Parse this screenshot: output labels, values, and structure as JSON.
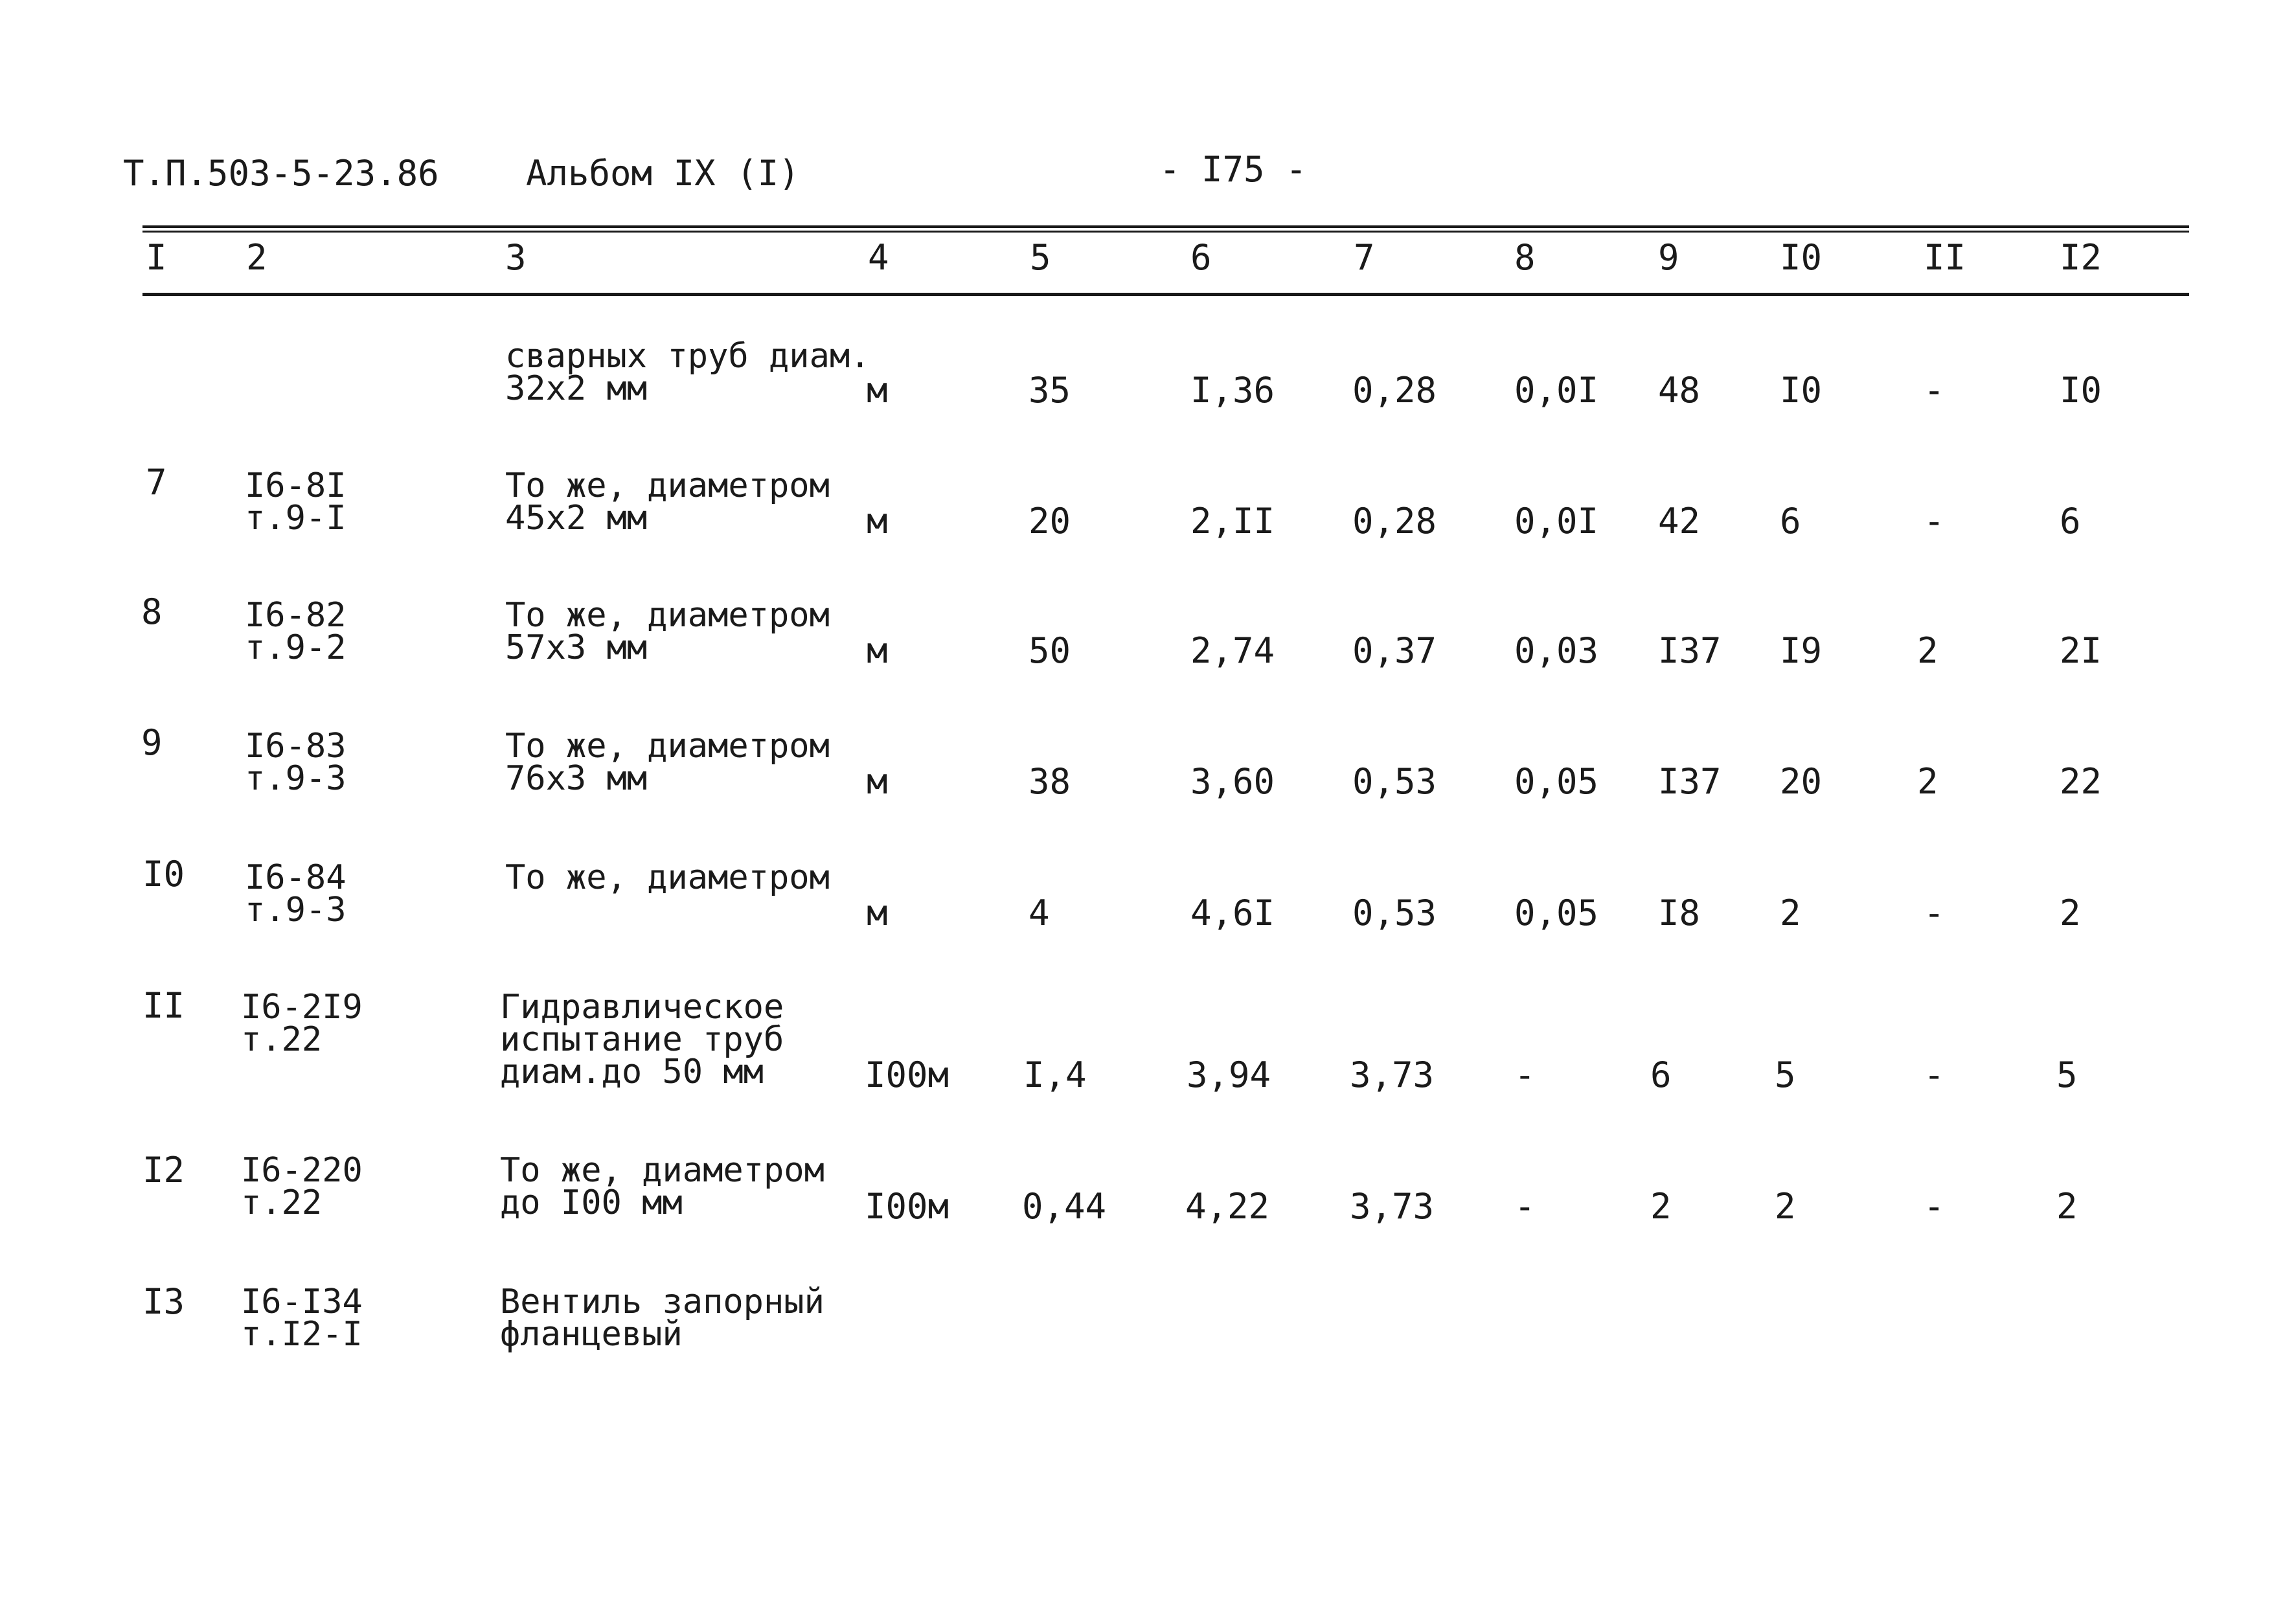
{
  "header": {
    "doc_code": "Т.П.503-5-23.86",
    "album": "Альбом IX (I)",
    "page": "- I75 -"
  },
  "column_numbers": [
    "I",
    "2",
    "3",
    "4",
    "5",
    "6",
    "7",
    "8",
    "9",
    "I0",
    "II",
    "I2"
  ],
  "rows": [
    {
      "num": "",
      "code": [
        "",
        ""
      ],
      "desc": [
        "сварных труб диам.",
        "32х2 мм"
      ],
      "unit": "м",
      "c5": "35",
      "c6": "I,36",
      "c7": "0,28",
      "c8": "0,0I",
      "c9": "48",
      "c10": "I0",
      "c11": "-",
      "c12": "I0"
    },
    {
      "num": "7",
      "code": [
        "I6-8I",
        "т.9-I"
      ],
      "desc": [
        "То же, диаметром",
        "45х2 мм"
      ],
      "unit": "м",
      "c5": "20",
      "c6": "2,II",
      "c7": "0,28",
      "c8": "0,0I",
      "c9": "42",
      "c10": "6",
      "c11": "-",
      "c12": "6"
    },
    {
      "num": "8",
      "code": [
        "I6-82",
        "т.9-2"
      ],
      "desc": [
        "То же, диаметром",
        "57х3 мм"
      ],
      "unit": "м",
      "c5": "50",
      "c6": "2,74",
      "c7": "0,37",
      "c8": "0,03",
      "c9": "I37",
      "c10": "I9",
      "c11": "2",
      "c12": "2I"
    },
    {
      "num": "9",
      "code": [
        "I6-83",
        "т.9-3"
      ],
      "desc": [
        "То же, диаметром",
        "76х3 мм"
      ],
      "unit": "м",
      "c5": "38",
      "c6": "3,60",
      "c7": "0,53",
      "c8": "0,05",
      "c9": "I37",
      "c10": "20",
      "c11": "2",
      "c12": "22"
    },
    {
      "num": "I0",
      "code": [
        "I6-84",
        "т.9-3"
      ],
      "desc": [
        "То же, диаметром",
        ""
      ],
      "unit": "м",
      "c5": "4",
      "c6": "4,6I",
      "c7": "0,53",
      "c8": "0,05",
      "c9": "I8",
      "c10": "2",
      "c11": "-",
      "c12": "2"
    },
    {
      "num": "II",
      "code": [
        "I6-2I9",
        "т.22"
      ],
      "desc": [
        "Гидравлическое",
        "испытание труб",
        "диам.до 50 мм"
      ],
      "unit": "I00м",
      "c5": "I,4",
      "c6": "3,94",
      "c7": "3,73",
      "c8": "-",
      "c9": "6",
      "c10": "5",
      "c11": "-",
      "c12": "5"
    },
    {
      "num": "I2",
      "code": [
        "I6-220",
        "т.22"
      ],
      "desc": [
        "То же, диаметром",
        "до I00 мм"
      ],
      "unit": "I00м",
      "c5": "0,44",
      "c6": "4,22",
      "c7": "3,73",
      "c8": "-",
      "c9": "2",
      "c10": "2",
      "c11": "-",
      "c12": "2"
    },
    {
      "num": "I3",
      "code": [
        "I6-I34",
        "т.I2-I"
      ],
      "desc": [
        "Вентиль запорный",
        "фланцевый"
      ],
      "unit": "",
      "c5": "",
      "c6": "",
      "c7": "",
      "c8": "",
      "c9": "",
      "c10": "",
      "c11": "",
      "c12": ""
    }
  ]
}
